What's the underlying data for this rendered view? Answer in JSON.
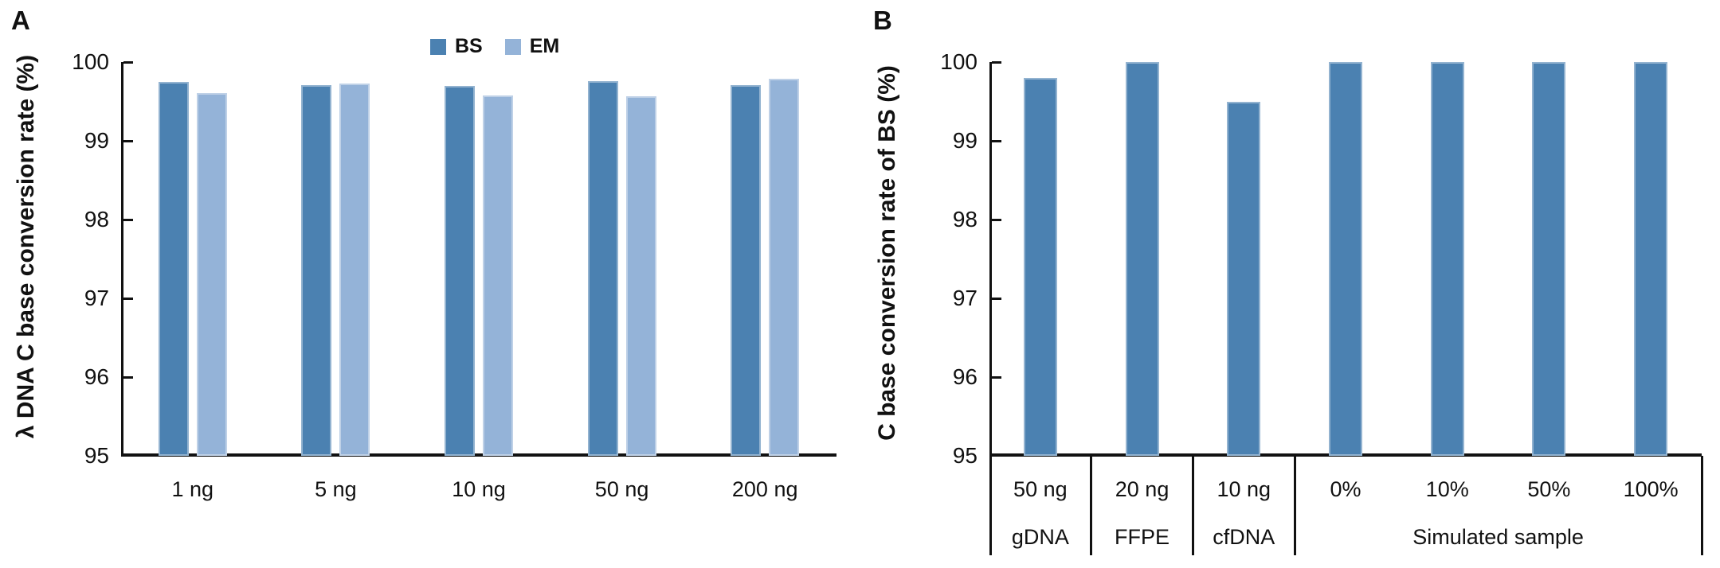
{
  "figure": {
    "background": "#ffffff",
    "line_color": "#111111"
  },
  "panels": [
    {
      "letter": "A"
    },
    {
      "letter": "B"
    }
  ],
  "chart_data": [
    {
      "type": "bar",
      "panel": "A",
      "title": "",
      "ylabel": "λ DNA C base conversion rate (%)",
      "xlabel": "",
      "categories": [
        "1 ng",
        "5 ng",
        "10 ng",
        "50 ng",
        "200 ng"
      ],
      "series": [
        {
          "name": "BS",
          "color": "#4b81b1",
          "values": [
            99.75,
            99.71,
            99.7,
            99.76,
            99.71
          ]
        },
        {
          "name": "EM",
          "color": "#94b3d8",
          "values": [
            99.61,
            99.73,
            99.58,
            99.57,
            99.79
          ]
        }
      ],
      "ylim": [
        95,
        100
      ],
      "yticks": [
        100,
        99,
        98,
        97,
        96,
        95
      ],
      "grid": false,
      "legend_position": "top-center"
    },
    {
      "type": "bar",
      "panel": "B",
      "title": "",
      "ylabel": "C base conversion rate of BS (%)",
      "xlabel": "",
      "categories": [
        "50 ng",
        "20 ng",
        "10 ng",
        "0%",
        "10%",
        "50%",
        "100%"
      ],
      "category_groups": [
        {
          "label": "gDNA",
          "span": 1
        },
        {
          "label": "FFPE",
          "span": 1
        },
        {
          "label": "cfDNA",
          "span": 1
        },
        {
          "label": "Simulated sample",
          "span": 4
        }
      ],
      "series": [
        {
          "name": "BS",
          "color": "#4b81b1",
          "values": [
            99.8,
            100.0,
            99.5,
            100.0,
            100.0,
            100.0,
            100.0
          ]
        }
      ],
      "ylim": [
        95,
        100
      ],
      "yticks": [
        100,
        99,
        98,
        97,
        96,
        95
      ],
      "grid": false,
      "legend_position": "none"
    }
  ]
}
